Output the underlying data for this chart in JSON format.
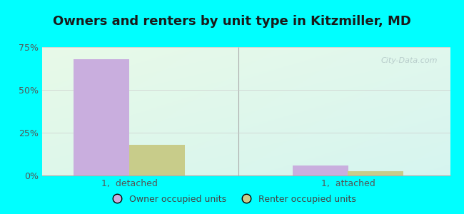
{
  "title": "Owners and renters by unit type in Kitzmiller, MD",
  "categories": [
    "1,  detached",
    "1,  attached"
  ],
  "owner_values": [
    68.0,
    6.0
  ],
  "renter_values": [
    18.0,
    2.5
  ],
  "owner_color": "#c9aede",
  "renter_color": "#c8cc8a",
  "ylim": [
    0,
    75
  ],
  "yticks": [
    0,
    25,
    50,
    75
  ],
  "ytick_labels": [
    "0%",
    "25%",
    "50%",
    "75%"
  ],
  "bar_width": 0.38,
  "outer_background": "#00ffff",
  "watermark": "City-Data.com",
  "legend_labels": [
    "Owner occupied units",
    "Renter occupied units"
  ],
  "title_fontsize": 13,
  "label_fontsize": 9,
  "tick_fontsize": 9,
  "group_positions": [
    0.55,
    2.05
  ],
  "xlim": [
    -0.05,
    2.75
  ]
}
